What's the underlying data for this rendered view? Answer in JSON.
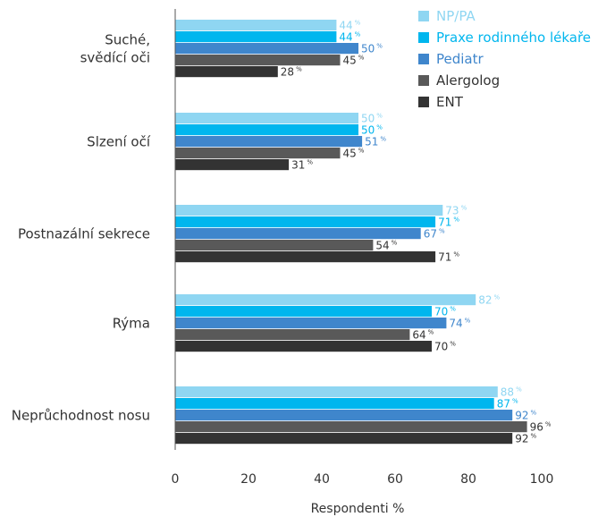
{
  "chart_data": {
    "type": "bar",
    "orientation": "horizontal",
    "title": "",
    "xlabel": "Respondenti %",
    "ylabel": "",
    "xlim": [
      0,
      100
    ],
    "xticks": [
      "0",
      "20",
      "40",
      "60",
      "80",
      "100"
    ],
    "value_suffix": "%",
    "legend_position": "top-right",
    "categories": [
      [
        "Suché,",
        "svědící oči"
      ],
      [
        "Slzení očí"
      ],
      [
        "Postnazální sekrece"
      ],
      [
        "Rýma"
      ],
      [
        "Neprůchodnost nosu"
      ]
    ],
    "series": [
      {
        "name": "NP/PA",
        "color": "#8fd6f2",
        "values": [
          44,
          50,
          73,
          82,
          88
        ]
      },
      {
        "name": "Praxe rodinného lékaře",
        "color": "#00b6ee",
        "values": [
          44,
          50,
          71,
          70,
          87
        ]
      },
      {
        "name": "Pediatr",
        "color": "#3f86cc",
        "values": [
          50,
          51,
          67,
          74,
          92
        ]
      },
      {
        "name": "Alergolog",
        "color": "#595959",
        "values": [
          45,
          45,
          54,
          64,
          96
        ]
      },
      {
        "name": "ENT",
        "color": "#333333",
        "values": [
          28,
          31,
          71,
          70,
          92
        ]
      }
    ]
  }
}
